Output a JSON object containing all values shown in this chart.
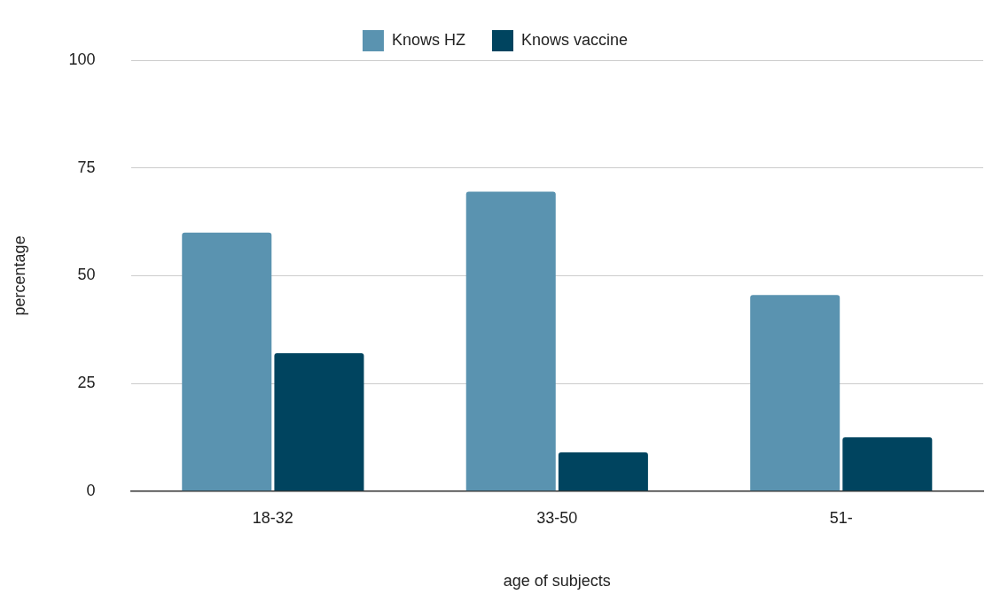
{
  "chart_data": {
    "type": "bar",
    "xlabel": "age of subjects",
    "ylabel": "percentage",
    "categories": [
      "18-32",
      "33-50",
      "51-"
    ],
    "series": [
      {
        "name": "Knows HZ",
        "color": "#5a93b0",
        "values": [
          60,
          69.5,
          45.5
        ]
      },
      {
        "name": "Knows vaccine",
        "color": "#00445f",
        "values": [
          32,
          9,
          12.5
        ]
      }
    ],
    "ylim": [
      0,
      100
    ],
    "yticks": [
      0,
      25,
      50,
      75,
      100
    ],
    "grid": "y",
    "legend": "top"
  }
}
